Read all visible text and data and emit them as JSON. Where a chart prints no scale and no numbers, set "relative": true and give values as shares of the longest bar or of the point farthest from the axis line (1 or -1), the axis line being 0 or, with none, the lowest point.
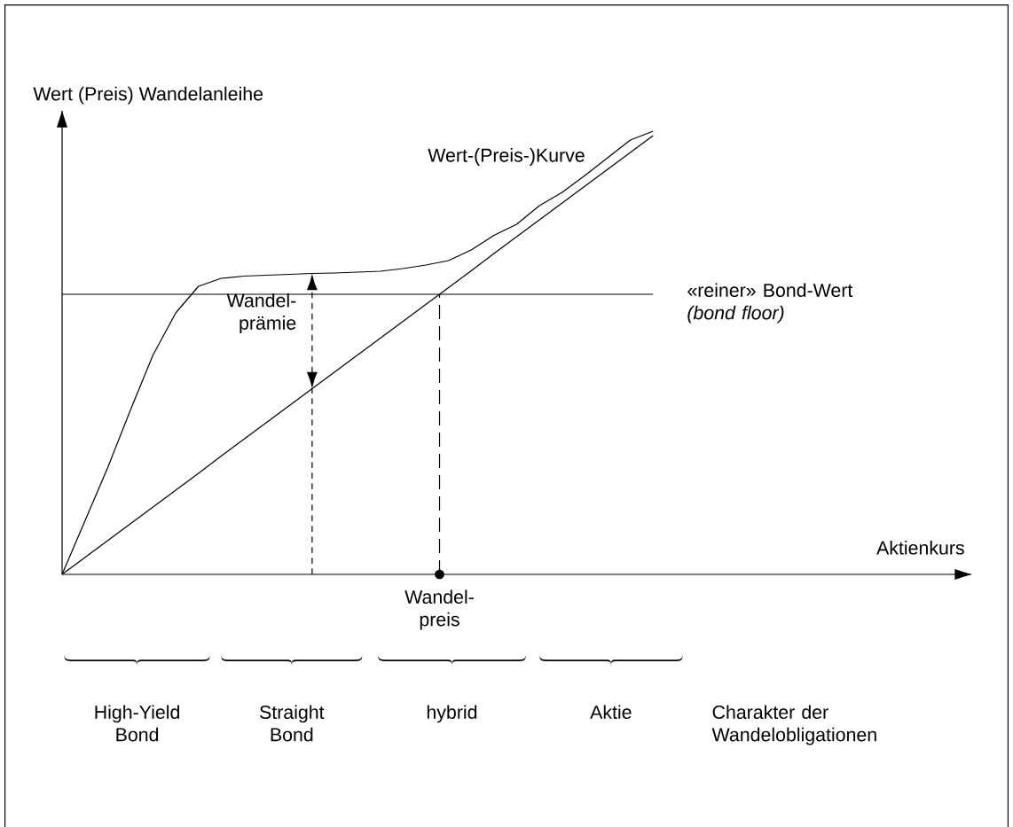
{
  "chart_data": {
    "type": "line",
    "relative": true,
    "xlabel": "Aktienkurs",
    "ylabel": "Wert (Preis) Wandelanleihe",
    "categories": [
      null,
      null,
      null,
      null,
      null,
      null,
      null,
      null,
      null,
      null,
      null,
      null,
      null,
      null,
      null,
      null,
      null,
      null,
      null,
      null,
      null,
      null,
      null,
      null,
      null,
      null,
      null,
      null,
      null,
      null,
      null,
      null,
      null,
      null,
      null,
      null,
      null,
      null,
      null,
      null,
      null
    ],
    "marker": "none",
    "series": [
      {
        "name": "Wert-(Preis-)Kurve",
        "color": "#000000",
        "values": [
          0,
          0.12,
          0.24,
          0.37,
          0.495,
          0.59,
          0.65,
          0.668,
          0.673,
          0.675,
          0.677,
          0.679,
          0.68,
          0.682,
          0.684,
          0.69,
          0.698,
          0.708,
          0.732,
          0.765,
          0.79,
          0.832,
          0.862,
          0.9,
          0.94,
          0.98,
          1.0,
          null,
          null,
          null,
          null,
          null,
          null,
          null,
          null,
          null,
          null,
          null,
          null,
          null,
          null
        ]
      },
      {
        "color": "#000000",
        "values": [
          0,
          0.038,
          0.076,
          0.114,
          0.152,
          0.19,
          0.228,
          0.267,
          0.305,
          0.343,
          0.381,
          0.419,
          0.457,
          0.495,
          0.533,
          0.571,
          0.609,
          0.647,
          0.685,
          0.724,
          0.762,
          0.8,
          0.838,
          0.876,
          0.914,
          0.952,
          0.99,
          null,
          null,
          null,
          null,
          null,
          null,
          null,
          null,
          null,
          null,
          null,
          null,
          null,
          null
        ]
      },
      {
        "name": "«reiner» Bond-Wert *(bond floor)*",
        "color": "#000000",
        "values": [
          0.632,
          0.632,
          0.632,
          0.632,
          0.632,
          0.632,
          0.632,
          0.632,
          0.632,
          0.632,
          0.632,
          0.632,
          0.632,
          0.632,
          0.632,
          0.632,
          0.632,
          0.632,
          0.632,
          0.632,
          0.632,
          0.632,
          0.632,
          0.632,
          0.632,
          0.632,
          0.632,
          null,
          null,
          null,
          null,
          null,
          null,
          null,
          null,
          null,
          null,
          null,
          null,
          null,
          null
        ]
      }
    ],
    "ref_lines": [
      {
        "axis": "x",
        "label": "Wandel-preis",
        "line_style": "dashed"
      }
    ],
    "annotations": [
      "Wandel-prämie",
      "High-Yield Bond",
      "Straight Bond",
      "hybrid",
      "Aktie",
      "Charakter der Wandelobligationen"
    ]
  }
}
